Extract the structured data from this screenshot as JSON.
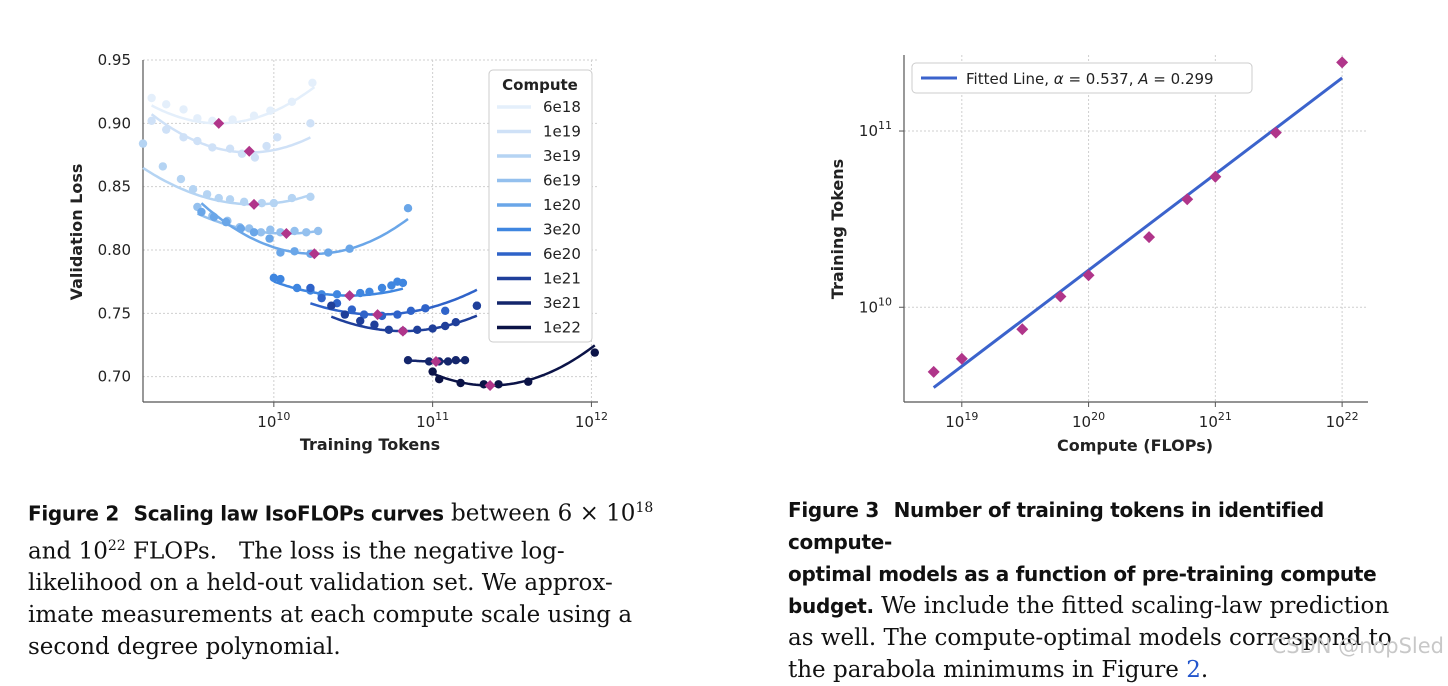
{
  "chart_data": [
    {
      "type": "scatter",
      "title": "",
      "xlabel": "Training Tokens",
      "ylabel": "Validation Loss",
      "xscale": "log",
      "xlim": [
        1500000000.0,
        1100000000000.0
      ],
      "ylim": [
        0.68,
        0.95
      ],
      "yticks": [
        0.7,
        0.75,
        0.8,
        0.85,
        0.9,
        0.95
      ],
      "ytick_labels": [
        "0.70",
        "0.75",
        "0.80",
        "0.85",
        "0.90",
        "0.95"
      ],
      "xticks": [
        {
          "base": "10",
          "exp": "10",
          "value": 10000000000.0
        },
        {
          "base": "10",
          "exp": "11",
          "value": 100000000000.0
        },
        {
          "base": "10",
          "exp": "12",
          "value": 1000000000000.0
        }
      ],
      "legend_title": "Compute",
      "legend_position": "top-right",
      "series": [
        {
          "name": "6e18",
          "color": "#e4effb",
          "min": {
            "x": 4500000000.0,
            "y": 0.9
          },
          "fit": {
            "x_range": [
              1700000000.0,
              18000000000.0
            ],
            "a": 0.079,
            "bottom": 0.9
          },
          "points": [
            [
              1700000000.0,
              0.92
            ],
            [
              2100000000.0,
              0.915
            ],
            [
              2700000000.0,
              0.911
            ],
            [
              3300000000.0,
              0.904
            ],
            [
              4100000000.0,
              0.902
            ],
            [
              5500000000.0,
              0.903
            ],
            [
              7500000000.0,
              0.906
            ],
            [
              9500000000.0,
              0.91
            ],
            [
              13000000000.0,
              0.917
            ],
            [
              17500000000.0,
              0.932
            ]
          ]
        },
        {
          "name": "1e19",
          "color": "#cfe1f7",
          "min": {
            "x": 7000000000.0,
            "y": 0.878
          },
          "fit": {
            "x_range": [
              1700000000.0,
              17000000000.0
            ],
            "a": 0.08,
            "bottom": 0.877
          },
          "points": [
            [
              1700000000.0,
              0.902
            ],
            [
              2100000000.0,
              0.895
            ],
            [
              2700000000.0,
              0.889
            ],
            [
              3300000000.0,
              0.886
            ],
            [
              4100000000.0,
              0.881
            ],
            [
              5300000000.0,
              0.88
            ],
            [
              6300000000.0,
              0.876
            ],
            [
              7600000000.0,
              0.873
            ],
            [
              9000000000.0,
              0.882
            ],
            [
              10500000000.0,
              0.889
            ],
            [
              17000000000.0,
              0.9
            ]
          ]
        },
        {
          "name": "3e19",
          "color": "#b5d4f3",
          "min": {
            "x": 7500000000.0,
            "y": 0.836
          },
          "fit": {
            "x_range": [
              1500000000.0,
              17000000000.0
            ],
            "a": 0.059,
            "bottom": 0.836
          },
          "points": [
            [
              1500000000.0,
              0.884
            ],
            [
              2000000000.0,
              0.866
            ],
            [
              2600000000.0,
              0.856
            ],
            [
              3100000000.0,
              0.848
            ],
            [
              3800000000.0,
              0.844
            ],
            [
              4500000000.0,
              0.841
            ],
            [
              5300000000.0,
              0.84
            ],
            [
              6500000000.0,
              0.838
            ],
            [
              8400000000.0,
              0.837
            ],
            [
              10000000000.0,
              0.837
            ],
            [
              13000000000.0,
              0.841
            ],
            [
              17000000000.0,
              0.842
            ]
          ]
        },
        {
          "name": "6e19",
          "color": "#94c0ee",
          "min": {
            "x": 12000000000.0,
            "y": 0.813
          },
          "fit": {
            "x_range": [
              3300000000.0,
              19000000000.0
            ],
            "a": 0.05,
            "bottom": 0.813
          },
          "points": [
            [
              3300000000.0,
              0.834
            ],
            [
              4100000000.0,
              0.827
            ],
            [
              5100000000.0,
              0.823
            ],
            [
              6100000000.0,
              0.818
            ],
            [
              7000000000.0,
              0.817
            ],
            [
              8300000000.0,
              0.814
            ],
            [
              9500000000.0,
              0.816
            ],
            [
              11000000000.0,
              0.814
            ],
            [
              13500000000.0,
              0.815
            ],
            [
              16000000000.0,
              0.814
            ],
            [
              19000000000.0,
              0.815
            ]
          ]
        },
        {
          "name": "1e20",
          "color": "#6aa6e8",
          "min": {
            "x": 18000000000.0,
            "y": 0.797
          },
          "fit": {
            "x_range": [
              3500000000.0,
              70000000000.0
            ],
            "a": 0.079,
            "bottom": 0.797
          },
          "points": [
            [
              3500000000.0,
              0.83
            ],
            [
              4200000000.0,
              0.826
            ],
            [
              5000000000.0,
              0.822
            ],
            [
              6200000000.0,
              0.817
            ],
            [
              7500000000.0,
              0.814
            ],
            [
              9400000000.0,
              0.809
            ],
            [
              11000000000.0,
              0.798
            ],
            [
              13500000000.0,
              0.799
            ],
            [
              17000000000.0,
              0.797
            ],
            [
              22000000000.0,
              0.798
            ],
            [
              30000000000.0,
              0.801
            ],
            [
              70000000000.0,
              0.833
            ]
          ]
        },
        {
          "name": "3e20",
          "color": "#3f86e0",
          "min": {
            "x": 30000000000.0,
            "y": 0.764
          },
          "fit": {
            "x_range": [
              10000000000.0,
              65000000000.0
            ],
            "a": 0.049,
            "bottom": 0.764
          },
          "points": [
            [
              10000000000.0,
              0.778
            ],
            [
              11000000000.0,
              0.777
            ],
            [
              14000000000.0,
              0.77
            ],
            [
              17000000000.0,
              0.768
            ],
            [
              20000000000.0,
              0.765
            ],
            [
              25000000000.0,
              0.765
            ],
            [
              35000000000.0,
              0.766
            ],
            [
              40000000000.0,
              0.767
            ],
            [
              48000000000.0,
              0.77
            ],
            [
              55000000000.0,
              0.772
            ],
            [
              60000000000.0,
              0.775
            ],
            [
              65000000000.0,
              0.774
            ]
          ]
        },
        {
          "name": "6e20",
          "color": "#2f63c9",
          "min": {
            "x": 45000000000.0,
            "y": 0.749
          },
          "fit": {
            "x_range": [
              17000000000.0,
              190000000000.0
            ],
            "a": 0.05,
            "bottom": 0.749
          },
          "points": [
            [
              17000000000.0,
              0.77
            ],
            [
              20000000000.0,
              0.762
            ],
            [
              25000000000.0,
              0.758
            ],
            [
              31000000000.0,
              0.753
            ],
            [
              37000000000.0,
              0.749
            ],
            [
              48000000000.0,
              0.748
            ],
            [
              60000000000.0,
              0.749
            ],
            [
              73000000000.0,
              0.752
            ],
            [
              90000000000.0,
              0.754
            ],
            [
              120000000000.0,
              0.752
            ],
            [
              190000000000.0,
              0.756
            ]
          ]
        },
        {
          "name": "1e21",
          "color": "#1f3f9a",
          "min": {
            "x": 65000000000.0,
            "y": 0.736
          },
          "fit": {
            "x_range": [
              23000000000.0,
              190000000000.0
            ],
            "a": 0.056,
            "bottom": 0.736
          },
          "points": [
            [
              23000000000.0,
              0.756
            ],
            [
              28000000000.0,
              0.749
            ],
            [
              35000000000.0,
              0.744
            ],
            [
              43000000000.0,
              0.741
            ],
            [
              53000000000.0,
              0.737
            ],
            [
              65000000000.0,
              0.736
            ],
            [
              80000000000.0,
              0.737
            ],
            [
              100000000000.0,
              0.738
            ],
            [
              120000000000.0,
              0.74
            ],
            [
              140000000000.0,
              0.743
            ],
            [
              190000000000.0,
              0.756
            ]
          ]
        },
        {
          "name": "3e21",
          "color": "#14266c",
          "min": {
            "x": 105000000000.0,
            "y": 0.712
          },
          "fit": {
            "x_range": [
              70000000000.0,
              160000000000.0
            ],
            "a": 0.03,
            "bottom": 0.712
          },
          "points": [
            [
              70000000000.0,
              0.713
            ],
            [
              95000000000.0,
              0.712
            ],
            [
              110000000000.0,
              0.712
            ],
            [
              125000000000.0,
              0.712
            ],
            [
              140000000000.0,
              0.713
            ],
            [
              160000000000.0,
              0.713
            ]
          ]
        },
        {
          "name": "1e22",
          "color": "#0b1347",
          "min": {
            "x": 230000000000.0,
            "y": 0.693
          },
          "fit": {
            "x_range": [
              100000000000.0,
              1050000000000.0
            ],
            "a": 0.073,
            "bottom": 0.693
          },
          "points": [
            [
              100000000000.0,
              0.704
            ],
            [
              110000000000.0,
              0.698
            ],
            [
              150000000000.0,
              0.695
            ],
            [
              210000000000.0,
              0.694
            ],
            [
              260000000000.0,
              0.694
            ],
            [
              400000000000.0,
              0.696
            ],
            [
              1050000000000.0,
              0.719
            ]
          ]
        }
      ]
    },
    {
      "type": "scatter",
      "title": "",
      "xlabel": "Compute (FLOPs)",
      "ylabel": "Training Tokens",
      "xscale": "log",
      "yscale": "log",
      "xlim": [
        3.5e+18,
        1.6e+22
      ],
      "ylim": [
        2900000000.0,
        270000000000.0
      ],
      "xticks": [
        {
          "base": "10",
          "exp": "19",
          "value": 1e+19
        },
        {
          "base": "10",
          "exp": "20",
          "value": 1e+20
        },
        {
          "base": "10",
          "exp": "21",
          "value": 1e+21
        },
        {
          "base": "10",
          "exp": "22",
          "value": 1e+22
        }
      ],
      "yticks": [
        {
          "base": "10",
          "exp": "10",
          "value": 10000000000.0
        },
        {
          "base": "10",
          "exp": "11",
          "value": 100000000000.0
        }
      ],
      "legend_position": "top-left",
      "legend": {
        "label": "Fitted Line, ",
        "alpha_sym": "α",
        "alpha_val": " = 0.537, ",
        "a_sym": "A",
        "a_val": " = 0.299"
      },
      "fit_line": {
        "color": "#3b63cc",
        "x_range": [
          6e+18,
          1e+22
        ],
        "y_range": [
          3500000000.0,
          200000000000.0
        ]
      },
      "point_color": "#b0358a",
      "points": [
        [
          6e+18,
          4300000000.0
        ],
        [
          1e+19,
          5100000000.0
        ],
        [
          3e+19,
          7500000000.0
        ],
        [
          6e+19,
          11500000000.0
        ],
        [
          1e+20,
          15200000000.0
        ],
        [
          3e+20,
          25000000000.0
        ],
        [
          6e+20,
          41000000000.0
        ],
        [
          1e+21,
          55000000000.0
        ],
        [
          3e+21,
          98000000000.0
        ],
        [
          1e+22,
          245000000000.0
        ]
      ]
    }
  ],
  "captions": {
    "fig2": {
      "label": "Figure 2",
      "title": "Scaling law IsoFLOPs curves",
      "line1_text": "between ",
      "line1_math": "6 × 10",
      "line1_exp": "18",
      "line2_pre": "and ",
      "line2_math": "10",
      "line2_exp": "22",
      "line2_text": " FLOPs.   The loss is the negative log-",
      "line3": "likelihood on a held-out validation set.  We approx-",
      "line4": "imate measurements at each compute scale using a",
      "line5": "second degree polynomial."
    },
    "fig3": {
      "label": "Figure 3",
      "title_line1": "Number of training tokens in identified compute-",
      "title_line2": "optimal models as a function of pre-training compute",
      "title_line3": "budget.",
      "line3_rest": " We include the fitted scaling-law prediction",
      "line4": "as well.  The compute-optimal models correspond to",
      "line5_pre": "the parabola minimums in Figure ",
      "line5_ref": "2",
      "line5_post": "."
    }
  },
  "watermark": "CSDN @nopSled",
  "colors": {
    "min_marker": "#b0358a",
    "grid": "#cccccc",
    "axis": "#555555"
  }
}
